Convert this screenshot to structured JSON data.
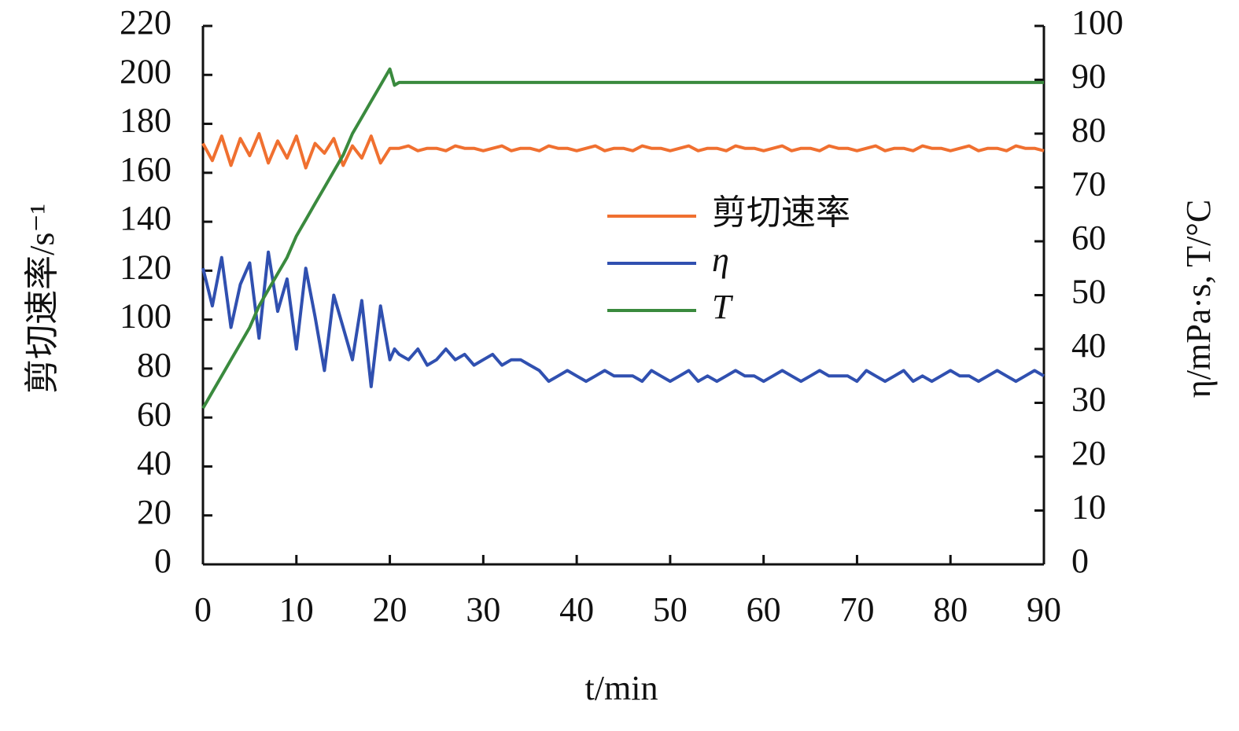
{
  "chart_data": {
    "type": "line",
    "xlabel": "t/min",
    "ylabel": "剪切速率/s⁻¹",
    "y2label": "η/mPa·s, T/°C",
    "x": [
      0,
      1,
      2,
      3,
      4,
      5,
      6,
      7,
      8,
      9,
      10,
      11,
      12,
      13,
      14,
      15,
      16,
      17,
      18,
      19,
      20,
      20.5,
      21,
      22,
      23,
      24,
      25,
      26,
      27,
      28,
      29,
      30,
      31,
      32,
      33,
      34,
      35,
      36,
      37,
      38,
      39,
      40,
      41,
      42,
      43,
      44,
      45,
      46,
      47,
      48,
      49,
      50,
      51,
      52,
      53,
      54,
      55,
      56,
      57,
      58,
      59,
      60,
      61,
      62,
      63,
      64,
      65,
      66,
      67,
      68,
      69,
      70,
      71,
      72,
      73,
      74,
      75,
      76,
      77,
      78,
      79,
      80,
      81,
      82,
      83,
      84,
      85,
      86,
      87,
      88,
      89,
      90
    ],
    "series": [
      {
        "name": "剪切速率",
        "color": "#f07030",
        "axis": "y",
        "values": [
          172,
          165,
          175,
          163,
          174,
          167,
          176,
          164,
          173,
          166,
          175,
          162,
          172,
          168,
          174,
          163,
          171,
          166,
          175,
          164,
          170,
          170,
          170,
          171,
          169,
          170,
          170,
          169,
          171,
          170,
          170,
          169,
          170,
          171,
          169,
          170,
          170,
          169,
          171,
          170,
          170,
          169,
          170,
          171,
          169,
          170,
          170,
          169,
          171,
          170,
          170,
          169,
          170,
          171,
          169,
          170,
          170,
          169,
          171,
          170,
          170,
          169,
          170,
          171,
          169,
          170,
          170,
          169,
          171,
          170,
          170,
          169,
          170,
          171,
          169,
          170,
          170,
          169,
          171,
          170,
          170,
          169,
          170,
          171,
          169,
          170,
          170,
          169,
          171,
          170,
          170,
          169
        ]
      },
      {
        "name": "η",
        "color": "#3050b0",
        "axis": "y2",
        "values": [
          55,
          48,
          57,
          44,
          52,
          56,
          42,
          58,
          47,
          53,
          40,
          55,
          46,
          36,
          50,
          44,
          38,
          49,
          33,
          48,
          38,
          40,
          39,
          38,
          40,
          37,
          38,
          40,
          38,
          39,
          37,
          38,
          39,
          37,
          38,
          38,
          37,
          36,
          34,
          35,
          36,
          35,
          34,
          35,
          36,
          35,
          35,
          35,
          34,
          36,
          35,
          34,
          35,
          36,
          34,
          35,
          34,
          35,
          36,
          35,
          35,
          34,
          35,
          36,
          35,
          34,
          35,
          36,
          35,
          35,
          35,
          34,
          36,
          35,
          34,
          35,
          36,
          34,
          35,
          34,
          35,
          36,
          35,
          35,
          34,
          35,
          36,
          35,
          34,
          35,
          36,
          35
        ]
      },
      {
        "name": "T",
        "color": "#3a8a3e",
        "axis": "y2",
        "values": [
          29,
          32,
          35,
          38,
          41,
          44,
          48,
          51,
          54,
          57,
          61,
          64,
          67,
          70,
          73,
          76,
          80,
          83,
          86,
          89,
          92,
          89,
          89.5,
          89.5,
          89.5,
          89.5,
          89.5,
          89.5,
          89.5,
          89.5,
          89.5,
          89.5,
          89.5,
          89.5,
          89.5,
          89.5,
          89.5,
          89.5,
          89.5,
          89.5,
          89.5,
          89.5,
          89.5,
          89.5,
          89.5,
          89.5,
          89.5,
          89.5,
          89.5,
          89.5,
          89.5,
          89.5,
          89.5,
          89.5,
          89.5,
          89.5,
          89.5,
          89.5,
          89.5,
          89.5,
          89.5,
          89.5,
          89.5,
          89.5,
          89.5,
          89.5,
          89.5,
          89.5,
          89.5,
          89.5,
          89.5,
          89.5,
          89.5,
          89.5,
          89.5,
          89.5,
          89.5,
          89.5,
          89.5,
          89.5,
          89.5,
          89.5,
          89.5,
          89.5,
          89.5,
          89.5,
          89.5,
          89.5,
          89.5,
          89.5,
          89.5,
          89.5
        ]
      }
    ],
    "xlim": [
      0,
      90
    ],
    "xticks": [
      0,
      10,
      20,
      30,
      40,
      50,
      60,
      70,
      80,
      90
    ],
    "ylim": [
      0,
      220
    ],
    "yticks": [
      0,
      20,
      40,
      60,
      80,
      100,
      120,
      140,
      160,
      180,
      200,
      220
    ],
    "y2lim": [
      0,
      100
    ],
    "y2ticks": [
      0,
      10,
      20,
      30,
      40,
      50,
      60,
      70,
      80,
      90,
      100
    ],
    "grid": false
  }
}
